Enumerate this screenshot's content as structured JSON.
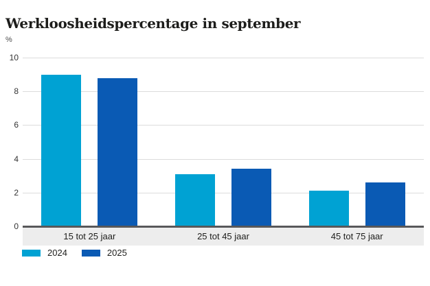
{
  "title": "Werkloosheidspercentage in september",
  "colors": {
    "series_2024": "#00a2d3",
    "series_2025": "#0a5ab4",
    "axis_line": "#58585a",
    "gridline": "#dcdcdc",
    "category_band_bg": "#ededed",
    "text": "#1d1d1b"
  },
  "chart_data": {
    "type": "bar",
    "title": "Werkloosheidspercentage in september",
    "xlabel": "",
    "ylabel": "%",
    "categories": [
      "15 tot 25 jaar",
      "25 tot 45 jaar",
      "45 tot 75 jaar"
    ],
    "series": [
      {
        "name": "2024",
        "color": "#00a2d3",
        "values": [
          9.0,
          3.1,
          2.1
        ]
      },
      {
        "name": "2025",
        "color": "#0a5ab4",
        "values": [
          8.8,
          3.4,
          2.6
        ]
      }
    ],
    "ylim": [
      0,
      10
    ],
    "yticks": [
      0,
      2,
      4,
      6,
      8,
      10
    ],
    "grid": true,
    "legend_position": "bottom-left"
  }
}
